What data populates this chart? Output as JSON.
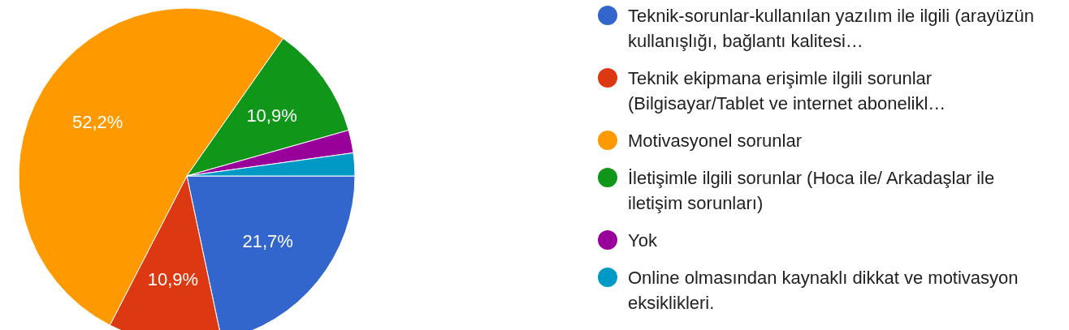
{
  "chart_data": {
    "type": "pie",
    "categories": [
      "Teknik-sorunlar-kullanılan yazılım ile ilgili (arayüzün kullanışlığı, bağlantı kalitesi…",
      "Teknik ekipmana erişimle ilgili sorunlar (Bilgisayar/Tablet ve internet abonelikl…",
      "Motivasyonel sorunlar",
      "İletişimle ilgili sorunlar (Hoca ile/ Arkadaşlar ile iletişim sorunları)",
      "Yok",
      "Online olmasından kaynaklı dikkat ve motivasyon eksiklikleri."
    ],
    "values": [
      21.7,
      10.9,
      52.2,
      10.9,
      2.2,
      2.2
    ],
    "colors": [
      "#3366cc",
      "#dc3912",
      "#ff9900",
      "#109618",
      "#990099",
      "#0099c6"
    ],
    "value_labels": [
      "21,7%",
      "10,9%",
      "52,2%",
      "10,9%",
      null,
      null
    ],
    "legend": "right"
  }
}
